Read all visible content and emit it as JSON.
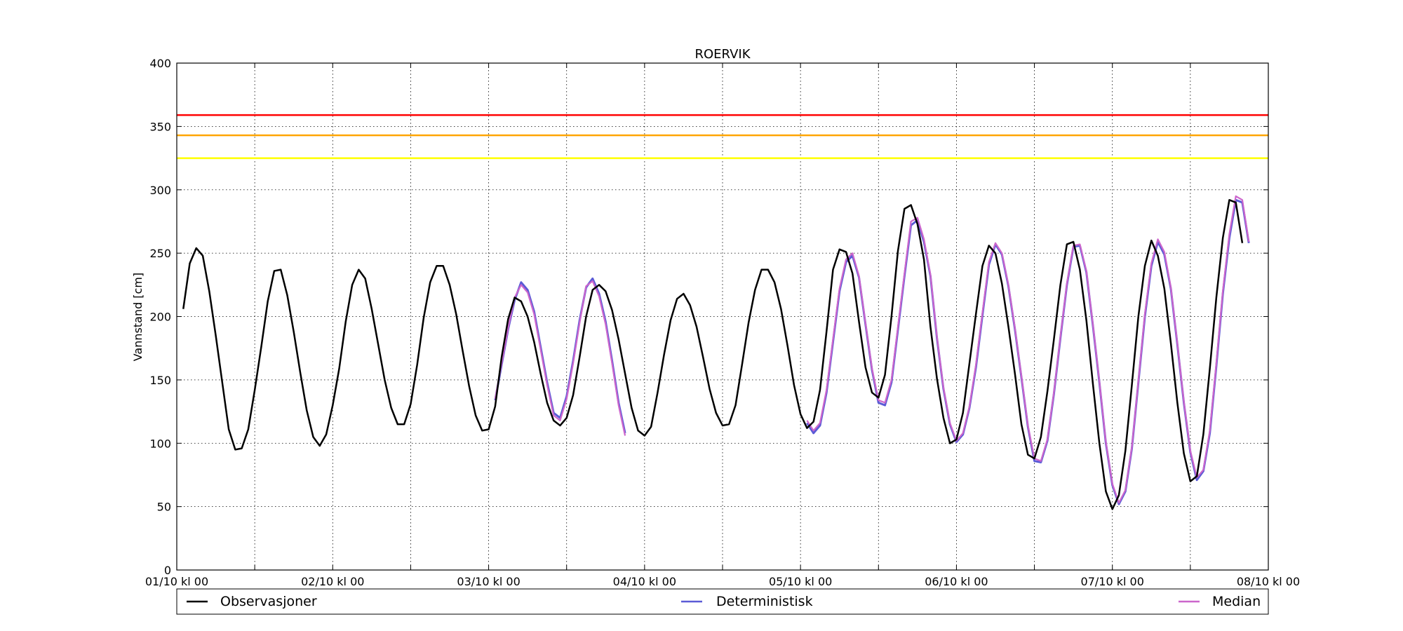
{
  "chart_data": {
    "type": "line",
    "title": "ROERVIK",
    "ylabel": "Vannstand [cm]",
    "xlabel": "",
    "ylim": [
      0,
      400
    ],
    "yticks": [
      0,
      50,
      100,
      150,
      200,
      250,
      300,
      350,
      400
    ],
    "xlim": [
      0,
      168
    ],
    "x_unit": "hours since 01/10 kl 00",
    "xticks": [
      {
        "x": 0,
        "label": "01/10 kl 00"
      },
      {
        "x": 12,
        "label": ""
      },
      {
        "x": 24,
        "label": "02/10 kl 00"
      },
      {
        "x": 36,
        "label": ""
      },
      {
        "x": 48,
        "label": "03/10 kl 00"
      },
      {
        "x": 60,
        "label": ""
      },
      {
        "x": 72,
        "label": "04/10 kl 00"
      },
      {
        "x": 84,
        "label": ""
      },
      {
        "x": 96,
        "label": "05/10 kl 00"
      },
      {
        "x": 108,
        "label": ""
      },
      {
        "x": 120,
        "label": "06/10 kl 00"
      },
      {
        "x": 132,
        "label": ""
      },
      {
        "x": 144,
        "label": "07/10 kl 00"
      },
      {
        "x": 156,
        "label": ""
      },
      {
        "x": 168,
        "label": "08/10 kl 00"
      }
    ],
    "grid": true,
    "legend_position": "bottom",
    "thresholds": [
      {
        "value": 359,
        "color": "#ff0000"
      },
      {
        "value": 343,
        "color": "#ffa500"
      },
      {
        "value": 325,
        "color": "#ffff00"
      }
    ],
    "series": [
      {
        "name": "Observasjoner",
        "color": "#000000",
        "start": 1,
        "values": [
          206,
          242,
          254,
          248,
          220,
          185,
          148,
          111,
          95,
          96,
          111,
          142,
          176,
          212,
          236,
          237,
          217,
          188,
          156,
          126,
          105,
          98,
          107,
          130,
          159,
          196,
          225,
          237,
          230,
          206,
          178,
          150,
          128,
          115,
          115,
          131,
          162,
          199,
          227,
          240,
          240,
          225,
          202,
          173,
          145,
          122,
          110,
          111,
          129,
          168,
          198,
          215,
          212,
          200,
          180,
          155,
          132,
          118,
          114,
          120,
          138,
          168,
          200,
          221,
          225,
          220,
          205,
          182,
          155,
          128,
          110,
          106,
          113,
          140,
          170,
          197,
          214,
          218,
          209,
          192,
          168,
          143,
          124,
          114,
          115,
          130,
          162,
          195,
          221,
          237,
          237,
          227,
          206,
          177,
          146,
          123,
          112,
          117,
          142,
          188,
          237,
          253,
          251,
          234,
          196,
          160,
          140,
          136,
          154,
          200,
          252,
          285,
          288,
          273,
          245,
          192,
          151,
          120,
          100,
          103,
          124,
          163,
          202,
          240,
          256,
          250,
          226,
          192,
          155,
          115,
          91,
          88,
          105,
          141,
          182,
          225,
          257,
          259,
          237,
          197,
          147,
          100,
          62,
          48,
          59,
          94,
          146,
          200,
          240,
          260,
          248,
          222,
          179,
          132,
          92,
          70,
          74,
          107,
          159,
          215,
          262,
          292,
          290,
          258
        ]
      },
      {
        "name": "Deterministisk",
        "color": "#5b5bd6",
        "start": 49,
        "values": [
          134,
          162,
          190,
          213,
          227,
          221,
          204,
          176,
          148,
          124,
          120,
          137,
          165,
          197,
          223,
          230,
          218,
          196,
          165,
          132,
          108,
          null,
          null,
          null,
          null,
          null,
          null,
          null,
          null,
          null,
          null,
          null,
          null,
          null,
          null,
          null,
          null,
          null,
          null,
          null,
          null,
          null,
          null,
          null,
          null,
          null,
          null,
          null,
          116,
          108,
          114,
          140,
          180,
          220,
          243,
          248,
          231,
          194,
          158,
          132,
          130,
          148,
          190,
          232,
          272,
          276,
          259,
          232,
          183,
          143,
          115,
          101,
          107,
          128,
          160,
          201,
          241,
          257,
          249,
          224,
          190,
          152,
          113,
          86,
          85,
          102,
          139,
          183,
          225,
          255,
          256,
          235,
          193,
          148,
          100,
          67,
          52,
          62,
          96,
          148,
          200,
          240,
          259,
          249,
          222,
          178,
          132,
          93,
          71,
          78,
          108,
          161,
          218,
          262,
          292,
          290,
          258
        ]
      },
      {
        "name": "Median",
        "color": "#cc66cc",
        "start": 49,
        "values": [
          135,
          163,
          191,
          215,
          225,
          219,
          202,
          174,
          146,
          122,
          118,
          135,
          163,
          195,
          224,
          228,
          216,
          194,
          163,
          130,
          106,
          null,
          null,
          null,
          null,
          null,
          null,
          null,
          null,
          null,
          null,
          null,
          null,
          null,
          null,
          null,
          null,
          null,
          null,
          null,
          null,
          null,
          null,
          null,
          null,
          null,
          null,
          null,
          118,
          110,
          116,
          142,
          182,
          222,
          245,
          250,
          232,
          195,
          159,
          134,
          132,
          150,
          192,
          234,
          275,
          278,
          261,
          233,
          184,
          144,
          116,
          102,
          108,
          129,
          162,
          203,
          243,
          258,
          250,
          225,
          191,
          153,
          114,
          88,
          86,
          103,
          140,
          184,
          226,
          256,
          257,
          236,
          194,
          149,
          101,
          68,
          53,
          63,
          97,
          149,
          202,
          242,
          261,
          251,
          223,
          179,
          133,
          94,
          73,
          79,
          110,
          163,
          220,
          265,
          295,
          292,
          259
        ]
      }
    ]
  }
}
